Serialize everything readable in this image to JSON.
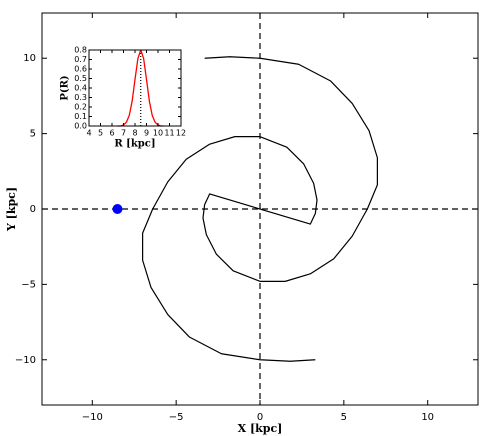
{
  "chart_data": [
    {
      "type": "line",
      "xlabel": "X [kpc]",
      "ylabel": "Y [kpc]",
      "xlim": [
        -13,
        13
      ],
      "ylim": [
        -13,
        13
      ],
      "xticks": [
        {
          "value": -10,
          "label": "−10"
        },
        {
          "value": -5,
          "label": "−5"
        },
        0,
        5,
        10
      ],
      "yticks": [
        {
          "value": -10,
          "label": "−10"
        },
        {
          "value": -5,
          "label": "−5"
        },
        0,
        5,
        10
      ],
      "axhline": 0,
      "axvline": 0,
      "series": [
        {
          "kind": "line",
          "color": "#000000",
          "x": [
            3.3,
            1.8,
            0,
            -2.3,
            -4.2,
            -5.5,
            -6.5,
            -7,
            -7,
            -6.4,
            -5.5,
            -4.4,
            -3,
            -1.5,
            0,
            1.6,
            2.6,
            3.2,
            3.4,
            3.3,
            3,
            -3,
            -3.3,
            -3.4,
            -3.2,
            -2.6,
            -1.6,
            0,
            1.5,
            3,
            4.4,
            5.5,
            6.4,
            7,
            7,
            6.5,
            5.5,
            4.2,
            2.3,
            0,
            -1.8,
            -3.3
          ],
          "values": [
            -10,
            -10.1,
            -10,
            -9.6,
            -8.5,
            -7,
            -5.2,
            -3.4,
            -1.6,
            0,
            1.8,
            3.3,
            4.3,
            4.8,
            4.8,
            4.1,
            3,
            1.7,
            0.6,
            -0.3,
            -1,
            1,
            0.3,
            -0.6,
            -1.7,
            -3,
            -4.1,
            -4.8,
            -4.8,
            -4.3,
            -3.3,
            -1.8,
            0,
            1.6,
            3.4,
            5.2,
            7,
            8.5,
            9.6,
            10,
            10.1,
            10
          ]
        },
        {
          "kind": "scatter",
          "color": "#0000ff",
          "x": [
            -8.5
          ],
          "values": [
            0
          ]
        }
      ]
    },
    {
      "type": "line",
      "xlabel": "R [kpc]",
      "ylabel": "P(R)",
      "xlim": [
        4,
        12
      ],
      "ylim": [
        0,
        0.8
      ],
      "xticks": [
        4,
        5,
        6,
        7,
        8,
        9,
        10,
        11,
        12
      ],
      "yticks": [
        {
          "value": 0,
          "label": "0.0"
        },
        0.1,
        0.2,
        0.3,
        0.4,
        0.5,
        0.6,
        0.7,
        0.8
      ],
      "axvline": 8.5,
      "series": [
        {
          "kind": "line",
          "color": "#ff0000",
          "x": [
            6.5,
            6.75,
            7,
            7.25,
            7.5,
            7.75,
            8,
            8.25,
            8.5,
            8.75,
            9,
            9.25,
            9.5,
            9.75,
            10,
            10.25,
            10.5
          ],
          "values": [
            0,
            0,
            0.01,
            0.04,
            0.11,
            0.26,
            0.49,
            0.71,
            0.8,
            0.71,
            0.49,
            0.26,
            0.11,
            0.04,
            0.01,
            0,
            0
          ]
        }
      ]
    }
  ]
}
